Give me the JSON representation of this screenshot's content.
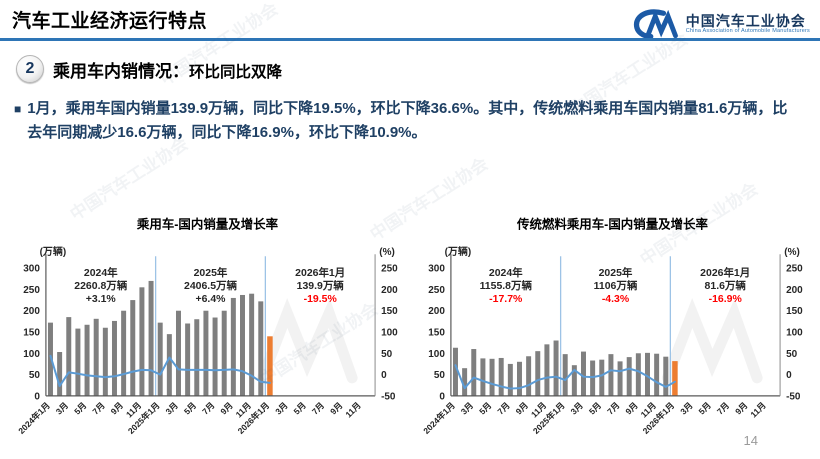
{
  "header": {
    "title": "汽车工业经济运行特点",
    "logo": {
      "org_cn": "中国汽车工业协会",
      "org_en": "China Association of Automobile Manufacturers"
    }
  },
  "section": {
    "number": "2",
    "title": "乘用车内销情况：",
    "subtitle": "环比同比双降"
  },
  "bullet": {
    "text": "1月，乘用车国内销量139.9万辆，同比下降19.5%，环比下降36.6%。其中，传统燃料乘用车国内销量81.6万辆，比去年同期减少16.6万辆，同比下降16.9%，环比下降10.9%。"
  },
  "page_number": "14",
  "watermark_text": "中国汽车工业协会",
  "colors": {
    "bar": "#7F7F7F",
    "highlight_bar": "#ED7D31",
    "line": "#5B9BD5",
    "divider": "#9DC3E6",
    "axis": "#595959",
    "tick_text": "#262626",
    "annotation_text": "#262626",
    "negative": "#FF0000",
    "header_rule": "#2E75B6",
    "logo_blue": "#1C5AA6",
    "body_text": "#1F4064"
  },
  "chart_data": [
    {
      "type": "bar",
      "title": "乘用车-国内销量及增长率",
      "left_axis": {
        "unit": "(万辆)",
        "ticks": [
          300,
          250,
          200,
          150,
          100,
          50,
          0
        ],
        "min": 0,
        "max": 300
      },
      "right_axis": {
        "unit": "(%)",
        "ticks": [
          250,
          200,
          150,
          100,
          50,
          0,
          -50
        ],
        "min": -50,
        "max": 250
      },
      "x_labels": [
        "2024年1月",
        "3月",
        "5月",
        "7月",
        "9月",
        "11月",
        "2025年1月",
        "3月",
        "5月",
        "7月",
        "9月",
        "11月",
        "2026年1月",
        "3月",
        "5月",
        "7月",
        "9月",
        "11月"
      ],
      "total_slots": 36,
      "bars": [
        172,
        103,
        185,
        158,
        167,
        181,
        160,
        176,
        200,
        225,
        255,
        270,
        172,
        145,
        200,
        170,
        180,
        200,
        184,
        200,
        230,
        237,
        240,
        222,
        139.9
      ],
      "line_pct": [
        44,
        -27,
        5,
        2,
        -2,
        -4,
        -6,
        -4,
        1,
        7,
        11,
        10,
        0,
        40,
        12,
        11,
        11,
        11,
        10,
        11,
        12,
        8,
        -3,
        -17,
        -19.5
      ],
      "dividers_at_slot": [
        12,
        24
      ],
      "annotations": [
        {
          "label": "2024年",
          "value": "2260.8万辆",
          "pct": "+3.1%",
          "pct_negative": false
        },
        {
          "label": "2025年",
          "value": "2406.5万辆",
          "pct": "+6.4%",
          "pct_negative": false
        },
        {
          "label": "2026年1月",
          "value": "139.9万辆",
          "pct": "-19.5%",
          "pct_negative": true
        }
      ],
      "legend_position": "none",
      "grid": false
    },
    {
      "type": "bar",
      "title": "传统燃料乘用车-国内销量及增长率",
      "left_axis": {
        "unit": "(万辆)",
        "ticks": [
          300,
          250,
          200,
          150,
          100,
          50,
          0
        ],
        "min": 0,
        "max": 300
      },
      "right_axis": {
        "unit": "(%)",
        "ticks": [
          250,
          200,
          150,
          100,
          50,
          0,
          -50
        ],
        "min": -50,
        "max": 250
      },
      "x_labels": [
        "2024年1月",
        "3月",
        "5月",
        "7月",
        "9月",
        "11月",
        "2025年1月",
        "3月",
        "5月",
        "7月",
        "9月",
        "11月",
        "2026年1月",
        "3月",
        "5月",
        "7月",
        "9月",
        "11月"
      ],
      "total_slots": 36,
      "bars": [
        113,
        65,
        110,
        88,
        87,
        89,
        75,
        80,
        93,
        105,
        121,
        130,
        98,
        72,
        104,
        83,
        85,
        98,
        81,
        91,
        100,
        101,
        99,
        92,
        81.6
      ],
      "line_pct": [
        22,
        -32,
        -7,
        -15,
        -22,
        -28,
        -33,
        -32,
        -25,
        -13,
        -7,
        -5,
        -13,
        11,
        -5,
        -6,
        -2,
        10,
        8,
        14,
        8,
        -4,
        -18,
        -29,
        -16.9
      ],
      "dividers_at_slot": [
        12,
        24
      ],
      "annotations": [
        {
          "label": "2024年",
          "value": "1155.8万辆",
          "pct": "-17.7%",
          "pct_negative": true
        },
        {
          "label": "2025年",
          "value": "1106万辆",
          "pct": "-4.3%",
          "pct_negative": true
        },
        {
          "label": "2026年1月",
          "value": "81.6万辆",
          "pct": "-16.9%",
          "pct_negative": true
        }
      ],
      "legend_position": "none",
      "grid": false
    }
  ]
}
